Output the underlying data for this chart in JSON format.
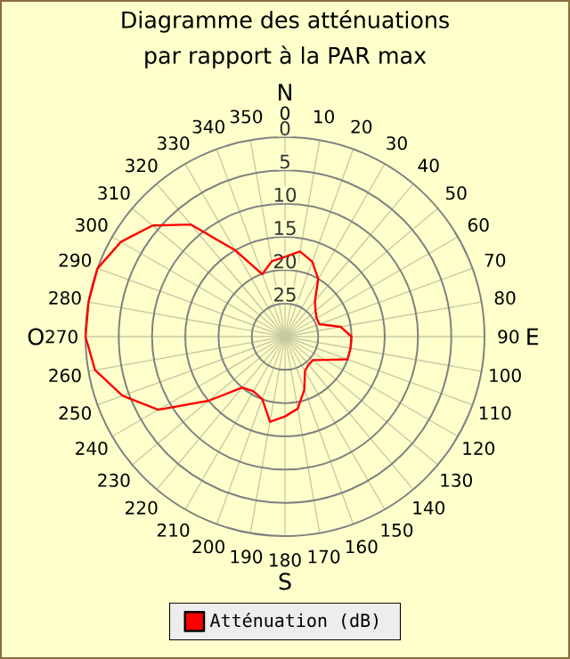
{
  "chart_data": {
    "type": "radar",
    "title": "Diagramme des atténuations",
    "subtitle": "par rapport à la PAR max",
    "categories": [
      "0",
      "10",
      "20",
      "30",
      "40",
      "50",
      "60",
      "70",
      "80",
      "90",
      "100",
      "110",
      "120",
      "130",
      "140",
      "150",
      "160",
      "170",
      "180",
      "190",
      "200",
      "210",
      "220",
      "230",
      "240",
      "250",
      "260",
      "270",
      "280",
      "290",
      "300",
      "310",
      "320",
      "330",
      "340",
      "350"
    ],
    "series": [
      {
        "name": "Atténuation (dB)",
        "color": "#ff0000",
        "values": [
          18,
          17,
          18,
          20,
          23,
          24,
          24.5,
          24.5,
          21.5,
          20,
          20,
          20,
          23,
          24.5,
          24.5,
          24,
          21.5,
          19,
          18,
          17,
          20,
          20.5,
          20,
          15,
          8,
          4,
          1,
          0,
          0,
          0,
          1.5,
          4,
          8,
          15,
          20,
          18.5
        ]
      }
    ],
    "ylim": [
      30,
      0
    ],
    "yticks": [
      0,
      5,
      10,
      15,
      20,
      25
    ],
    "grid": true,
    "legend": "bottom",
    "annotations": [
      "N",
      "E",
      "S",
      "O"
    ]
  }
}
